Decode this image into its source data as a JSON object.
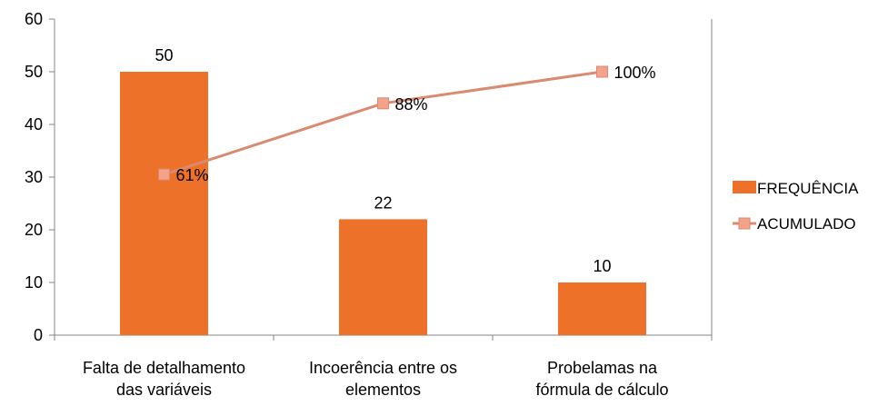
{
  "chart_data": {
    "type": "bar",
    "title": "",
    "xlabel": "",
    "ylabel": "",
    "ylim": [
      0,
      60
    ],
    "yticks": [
      0,
      10,
      20,
      30,
      40,
      50,
      60
    ],
    "grid": false,
    "categories": [
      [
        "Falta de detalhamento",
        "das variáveis"
      ],
      [
        "Incoerência entre os",
        "elementos"
      ],
      [
        "Probelamas na",
        "fórmula de cálculo"
      ]
    ],
    "series": [
      {
        "name": "FREQUÊNCIA",
        "type": "bar",
        "values": [
          50,
          22,
          10
        ],
        "data_labels": [
          "50",
          "22",
          "10"
        ],
        "color": "#ED7128"
      },
      {
        "name": "ACUMULADO",
        "type": "line",
        "values": [
          61,
          88,
          100
        ],
        "data_labels": [
          "61%",
          "88%",
          "100%"
        ],
        "axis": "secondary",
        "axis_range": [
          0,
          120
        ],
        "color": "#F4A28A",
        "line_color": "#D98A70"
      }
    ],
    "legend_position": "right"
  }
}
